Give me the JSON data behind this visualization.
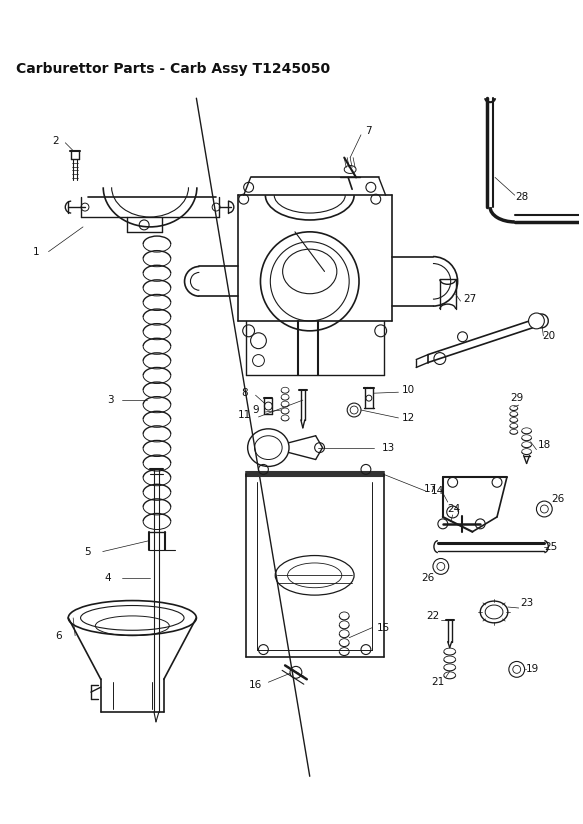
{
  "title": "Carburettor Parts - Carb Assy T1245050",
  "title_fontsize": 10,
  "background_color": "#ffffff",
  "line_color": "#1a1a1a",
  "label_color": "#111111",
  "label_fontsize": 7.5,
  "fig_width": 5.83,
  "fig_height": 8.24,
  "dpi": 100
}
